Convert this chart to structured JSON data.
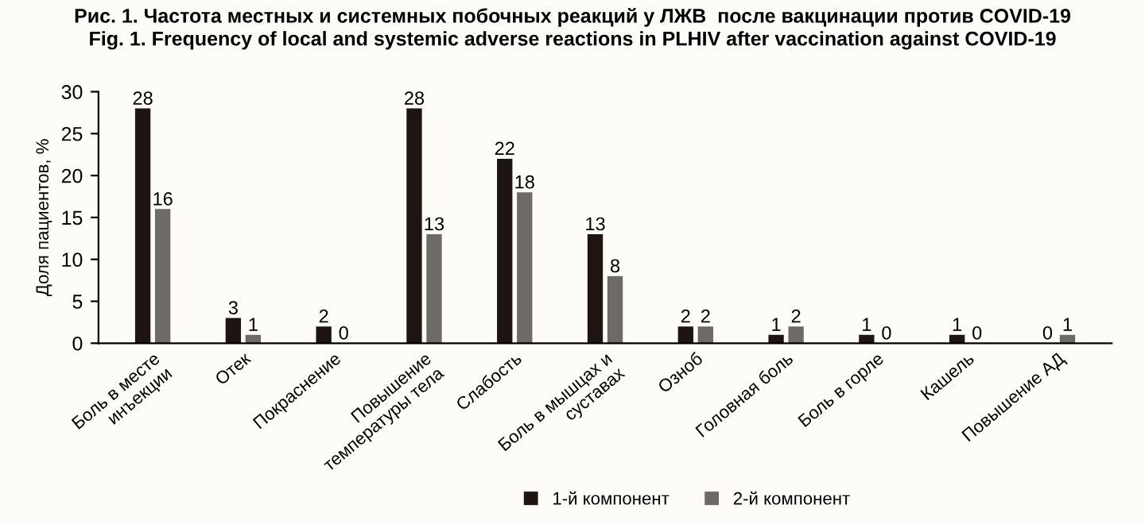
{
  "chart_data": {
    "type": "bar",
    "title": "Рис. 1. Частота местных и системных побочных реакций у ЛЖВ  после вакцинации против COVID-19\nFig. 1. Frequency of local and systemic adverse reactions in PLHIV after vaccination against COVID-19",
    "ylabel": "Доля пациентов, %",
    "categories": [
      "Боль в месте\nинъекции",
      "Отек",
      "Покраснение",
      "Повышение\nтемпературы тела",
      "Слабость",
      "Боль в мышцах и\nсуставах",
      "Озноб",
      "Головная боль",
      "Боль в горле",
      "Кашель",
      "Повышение АД"
    ],
    "series": [
      {
        "name": "1-й компонент",
        "color": "#1e1410",
        "values": [
          28,
          3,
          2,
          28,
          22,
          13,
          2,
          1,
          1,
          1,
          0
        ]
      },
      {
        "name": "2-й компонент",
        "color": "#6e6a68",
        "values": [
          16,
          1,
          0,
          13,
          18,
          8,
          2,
          2,
          0,
          0,
          1
        ]
      }
    ],
    "ylim": [
      0,
      30
    ],
    "yticks": [
      0,
      5,
      10,
      15,
      20,
      25,
      30
    ],
    "data_labels": true,
    "grid": false,
    "legend": "bottom"
  }
}
